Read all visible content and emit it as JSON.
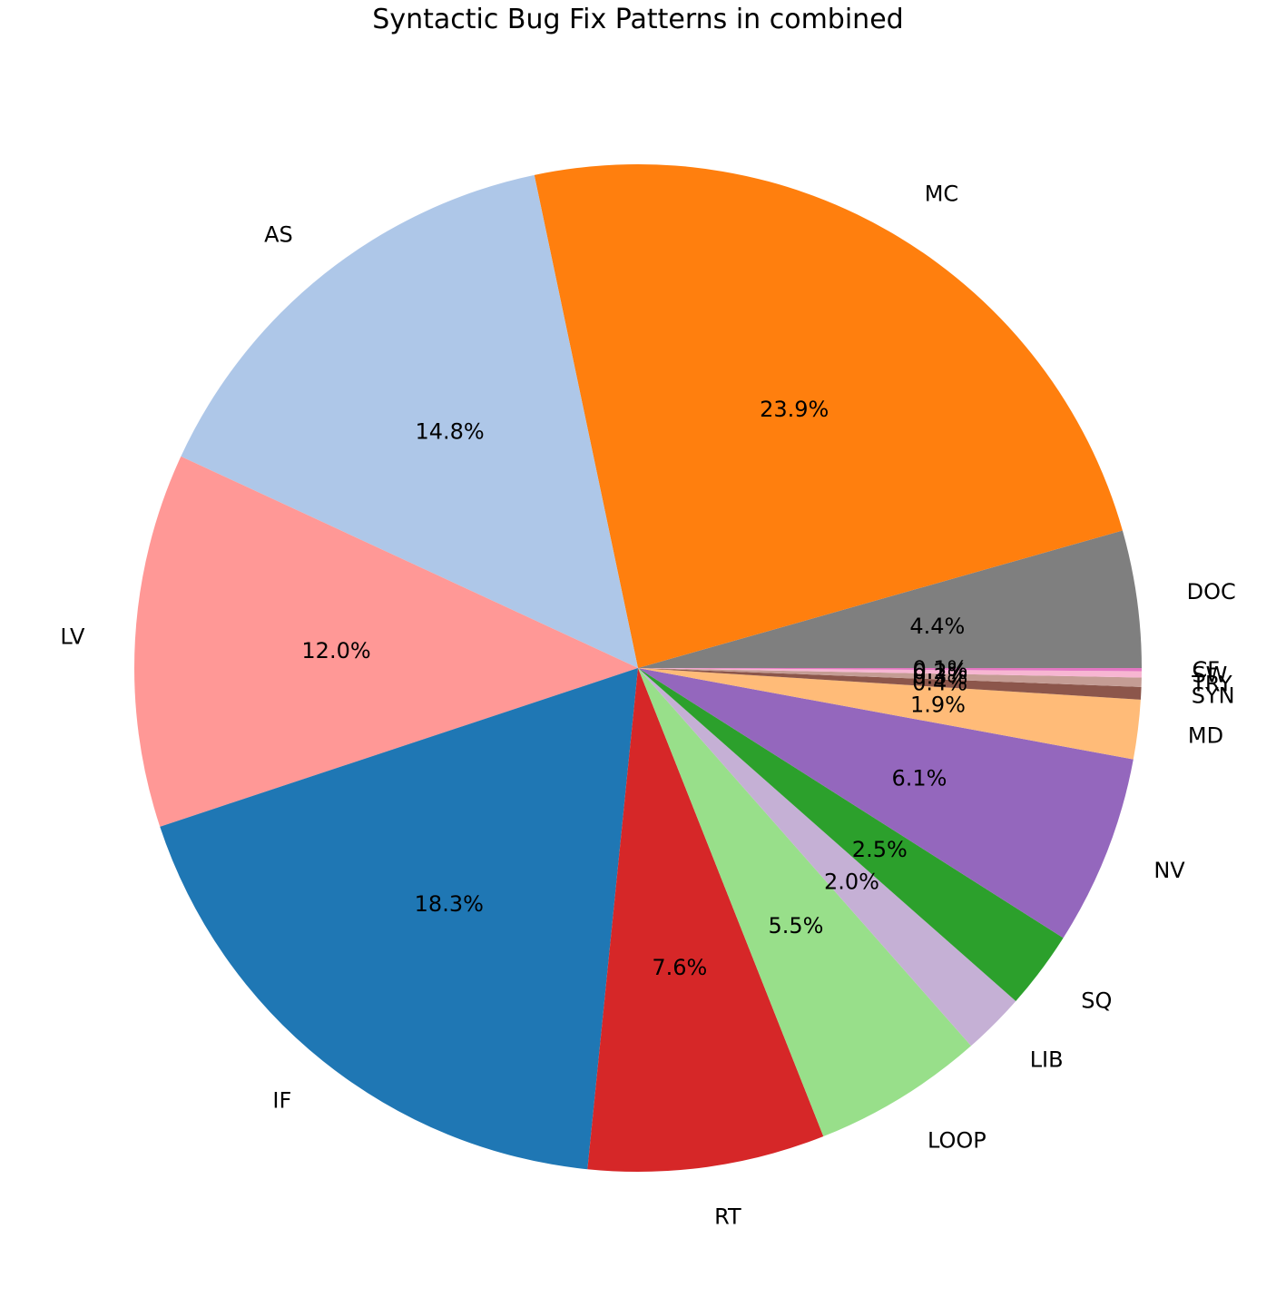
{
  "chart_data": {
    "type": "pie",
    "title": "Syntactic Bug Fix Patterns in combined",
    "start_angle_deg": 0,
    "direction": "counterclockwise",
    "slices": [
      {
        "label": "DOC",
        "value": 4.4,
        "pct_label": "4.4%",
        "color": "#7f7f7f"
      },
      {
        "label": "MC",
        "value": 23.9,
        "pct_label": "23.9%",
        "color": "#ff7f0e"
      },
      {
        "label": "AS",
        "value": 14.8,
        "pct_label": "14.8%",
        "color": "#aec7e8"
      },
      {
        "label": "LV",
        "value": 12.0,
        "pct_label": "12.0%",
        "color": "#ff9896"
      },
      {
        "label": "IF",
        "value": 18.3,
        "pct_label": "18.3%",
        "color": "#1f77b4"
      },
      {
        "label": "RT",
        "value": 7.6,
        "pct_label": "7.6%",
        "color": "#d62728"
      },
      {
        "label": "LOOP",
        "value": 5.5,
        "pct_label": "5.5%",
        "color": "#98df8a"
      },
      {
        "label": "LIB",
        "value": 2.0,
        "pct_label": "2.0%",
        "color": "#c5b0d5"
      },
      {
        "label": "SQ",
        "value": 2.5,
        "pct_label": "2.5%",
        "color": "#2ca02c"
      },
      {
        "label": "NV",
        "value": 6.1,
        "pct_label": "6.1%",
        "color": "#9467bd"
      },
      {
        "label": "MD",
        "value": 1.9,
        "pct_label": "1.9%",
        "color": "#ffbb78"
      },
      {
        "label": "SYN",
        "value": 0.4,
        "pct_label": "0.4%",
        "color": "#8c564b"
      },
      {
        "label": "TRY",
        "value": 0.3,
        "pct_label": "0.3%",
        "color": "#c49c94"
      },
      {
        "label": "SW",
        "value": 0.2,
        "pct_label": "0.2%",
        "color": "#f7b6d2"
      },
      {
        "label": "CF",
        "value": 0.1,
        "pct_label": "0.1%",
        "color": "#e377c2"
      }
    ]
  }
}
